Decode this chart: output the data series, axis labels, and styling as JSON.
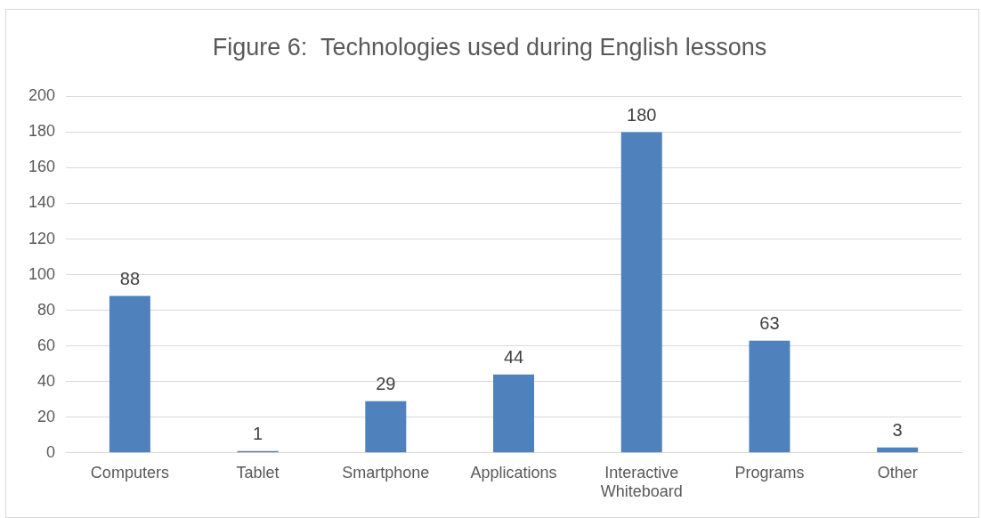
{
  "chart_data": {
    "type": "bar",
    "title": "Figure 6:  Technologies used during English lessons",
    "categories": [
      "Computers",
      "Tablet",
      "Smartphone",
      "Applications",
      "Interactive Whiteboard",
      "Programs",
      "Other"
    ],
    "values": [
      88,
      1,
      29,
      44,
      180,
      63,
      3
    ],
    "color": "#4f81bd",
    "ylim": [
      0,
      200
    ],
    "yticks": [
      0,
      20,
      40,
      60,
      80,
      100,
      120,
      140,
      160,
      180,
      200
    ],
    "grid": "y",
    "legend": false,
    "data_labels": true
  }
}
